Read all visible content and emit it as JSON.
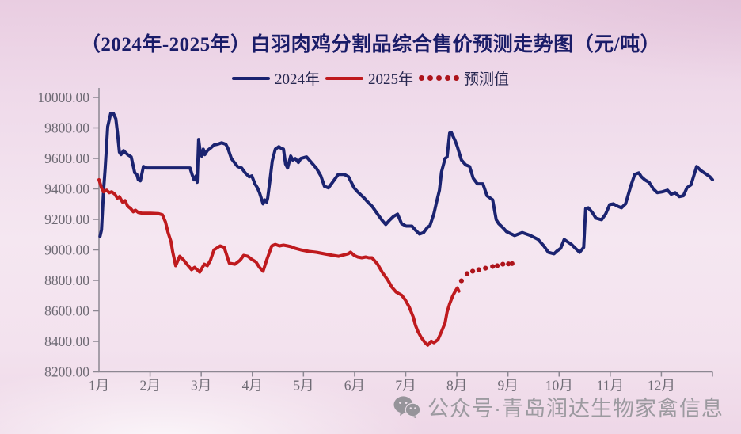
{
  "title": "（2024年-2025年）白羽肉鸡分割品综合售价预测走势图（元/吨）",
  "legend": {
    "items": [
      {
        "label": "2024年",
        "swatch": "solid-line",
        "color": "#1b2370"
      },
      {
        "label": "2025年",
        "swatch": "solid-line",
        "color": "#bf1a1e"
      },
      {
        "label": "预测值",
        "swatch": "dotted-line",
        "color": "#ad141b"
      }
    ]
  },
  "watermark": {
    "icon": "wechat-icon",
    "text": "公众号·青岛润达生物家禽信息"
  },
  "colors": {
    "series_2024": "#1b2370",
    "series_2025": "#bf1a1e",
    "forecast_dots": "#ad141b",
    "title_text": "#1a1c68",
    "legend_text": "#26264f",
    "axis_line": "#8c8792",
    "tick_label": "#6e6a74",
    "watermark_text": "#95959a"
  },
  "chart_data": {
    "type": "line",
    "title": "（2024年-2025年）白羽肉鸡分割品综合售价预测走势图（元/吨）",
    "unit": "元/吨",
    "grid": false,
    "legend_position": "top-center",
    "x_axis": {
      "tick_labels": [
        "1月",
        "2月",
        "3月",
        "4月",
        "5月",
        "6月",
        "7月",
        "8月",
        "9月",
        "10月",
        "11月",
        "12月"
      ],
      "range_months": [
        1,
        13
      ]
    },
    "y_axis": {
      "min": 8200,
      "max": 10000,
      "step": 200,
      "tick_labels": [
        "10000.00",
        "9800.00",
        "9600.00",
        "9400.00",
        "9200.00",
        "9000.00",
        "8800.00",
        "8600.00",
        "8400.00",
        "8200.00"
      ]
    },
    "series": [
      {
        "name": "2024年",
        "style": "solid",
        "color": "#1b2370",
        "points": [
          [
            1.02,
            9089
          ],
          [
            1.05,
            9131
          ],
          [
            1.09,
            9391
          ],
          [
            1.12,
            9532
          ],
          [
            1.17,
            9808
          ],
          [
            1.23,
            9896
          ],
          [
            1.28,
            9896
          ],
          [
            1.33,
            9859
          ],
          [
            1.36,
            9771
          ],
          [
            1.4,
            9641
          ],
          [
            1.43,
            9625
          ],
          [
            1.48,
            9651
          ],
          [
            1.51,
            9641
          ],
          [
            1.56,
            9625
          ],
          [
            1.63,
            9610
          ],
          [
            1.7,
            9505
          ],
          [
            1.74,
            9495
          ],
          [
            1.77,
            9459
          ],
          [
            1.81,
            9453
          ],
          [
            1.87,
            9547
          ],
          [
            1.93,
            9537
          ],
          [
            2.16,
            9537
          ],
          [
            2.47,
            9537
          ],
          [
            2.78,
            9537
          ],
          [
            2.83,
            9485
          ],
          [
            2.86,
            9459
          ],
          [
            2.9,
            9485
          ],
          [
            2.92,
            9443
          ],
          [
            2.95,
            9724
          ],
          [
            2.98,
            9641
          ],
          [
            3.01,
            9615
          ],
          [
            3.04,
            9661
          ],
          [
            3.07,
            9625
          ],
          [
            3.12,
            9651
          ],
          [
            3.18,
            9667
          ],
          [
            3.25,
            9688
          ],
          [
            3.32,
            9693
          ],
          [
            3.4,
            9703
          ],
          [
            3.48,
            9693
          ],
          [
            3.52,
            9667
          ],
          [
            3.59,
            9599
          ],
          [
            3.65,
            9573
          ],
          [
            3.71,
            9547
          ],
          [
            3.79,
            9537
          ],
          [
            3.86,
            9505
          ],
          [
            3.94,
            9479
          ],
          [
            3.99,
            9485
          ],
          [
            4.05,
            9433
          ],
          [
            4.1,
            9407
          ],
          [
            4.14,
            9375
          ],
          [
            4.21,
            9302
          ],
          [
            4.24,
            9328
          ],
          [
            4.28,
            9313
          ],
          [
            4.3,
            9339
          ],
          [
            4.34,
            9443
          ],
          [
            4.39,
            9583
          ],
          [
            4.45,
            9661
          ],
          [
            4.52,
            9677
          ],
          [
            4.56,
            9667
          ],
          [
            4.61,
            9661
          ],
          [
            4.65,
            9563
          ],
          [
            4.69,
            9537
          ],
          [
            4.75,
            9615
          ],
          [
            4.79,
            9589
          ],
          [
            4.84,
            9599
          ],
          [
            4.9,
            9573
          ],
          [
            4.95,
            9600
          ],
          [
            5.06,
            9610
          ],
          [
            5.18,
            9563
          ],
          [
            5.26,
            9532
          ],
          [
            5.34,
            9485
          ],
          [
            5.41,
            9417
          ],
          [
            5.49,
            9407
          ],
          [
            5.57,
            9443
          ],
          [
            5.68,
            9495
          ],
          [
            5.8,
            9495
          ],
          [
            5.88,
            9480
          ],
          [
            5.99,
            9407
          ],
          [
            6.06,
            9381
          ],
          [
            6.19,
            9339
          ],
          [
            6.26,
            9313
          ],
          [
            6.34,
            9287
          ],
          [
            6.45,
            9235
          ],
          [
            6.54,
            9193
          ],
          [
            6.61,
            9167
          ],
          [
            6.68,
            9193
          ],
          [
            6.76,
            9219
          ],
          [
            6.84,
            9235
          ],
          [
            6.92,
            9172
          ],
          [
            7.01,
            9156
          ],
          [
            7.12,
            9156
          ],
          [
            7.19,
            9130
          ],
          [
            7.27,
            9104
          ],
          [
            7.35,
            9114
          ],
          [
            7.43,
            9150
          ],
          [
            7.47,
            9156
          ],
          [
            7.55,
            9235
          ],
          [
            7.61,
            9323
          ],
          [
            7.66,
            9391
          ],
          [
            7.7,
            9511
          ],
          [
            7.77,
            9599
          ],
          [
            7.81,
            9610
          ],
          [
            7.86,
            9766
          ],
          [
            7.89,
            9771
          ],
          [
            7.97,
            9714
          ],
          [
            8.01,
            9677
          ],
          [
            8.09,
            9589
          ],
          [
            8.17,
            9558
          ],
          [
            8.25,
            9547
          ],
          [
            8.32,
            9469
          ],
          [
            8.4,
            9433
          ],
          [
            8.51,
            9433
          ],
          [
            8.59,
            9355
          ],
          [
            8.7,
            9329
          ],
          [
            8.77,
            9198
          ],
          [
            8.82,
            9172
          ],
          [
            8.9,
            9146
          ],
          [
            8.97,
            9120
          ],
          [
            9.13,
            9094
          ],
          [
            9.28,
            9114
          ],
          [
            9.44,
            9094
          ],
          [
            9.59,
            9068
          ],
          [
            9.7,
            9026
          ],
          [
            9.79,
            8984
          ],
          [
            9.9,
            8974
          ],
          [
            9.95,
            8990
          ],
          [
            10.03,
            9010
          ],
          [
            10.1,
            9068
          ],
          [
            10.17,
            9052
          ],
          [
            10.24,
            9036
          ],
          [
            10.32,
            9010
          ],
          [
            10.4,
            8984
          ],
          [
            10.48,
            9016
          ],
          [
            10.52,
            9271
          ],
          [
            10.57,
            9276
          ],
          [
            10.65,
            9245
          ],
          [
            10.72,
            9208
          ],
          [
            10.83,
            9198
          ],
          [
            10.91,
            9235
          ],
          [
            10.99,
            9297
          ],
          [
            11.06,
            9302
          ],
          [
            11.14,
            9287
          ],
          [
            11.22,
            9276
          ],
          [
            11.3,
            9302
          ],
          [
            11.4,
            9417
          ],
          [
            11.48,
            9495
          ],
          [
            11.56,
            9505
          ],
          [
            11.61,
            9479
          ],
          [
            11.68,
            9458
          ],
          [
            11.76,
            9443
          ],
          [
            11.84,
            9401
          ],
          [
            11.92,
            9375
          ],
          [
            12.02,
            9381
          ],
          [
            12.12,
            9391
          ],
          [
            12.19,
            9365
          ],
          [
            12.27,
            9375
          ],
          [
            12.35,
            9349
          ],
          [
            12.43,
            9355
          ],
          [
            12.5,
            9407
          ],
          [
            12.58,
            9427
          ],
          [
            12.69,
            9547
          ],
          [
            12.77,
            9521
          ],
          [
            12.84,
            9505
          ],
          [
            12.95,
            9479
          ],
          [
            13.0,
            9460
          ]
        ]
      },
      {
        "name": "2025年",
        "style": "solid",
        "color": "#bf1a1e",
        "points": [
          [
            1.0,
            9460
          ],
          [
            1.05,
            9407
          ],
          [
            1.09,
            9381
          ],
          [
            1.15,
            9391
          ],
          [
            1.2,
            9375
          ],
          [
            1.25,
            9381
          ],
          [
            1.31,
            9365
          ],
          [
            1.36,
            9339
          ],
          [
            1.4,
            9349
          ],
          [
            1.46,
            9313
          ],
          [
            1.51,
            9323
          ],
          [
            1.56,
            9287
          ],
          [
            1.62,
            9271
          ],
          [
            1.67,
            9250
          ],
          [
            1.71,
            9260
          ],
          [
            1.77,
            9245
          ],
          [
            1.85,
            9240
          ],
          [
            2.01,
            9240
          ],
          [
            2.16,
            9238
          ],
          [
            2.24,
            9230
          ],
          [
            2.3,
            9183
          ],
          [
            2.35,
            9115
          ],
          [
            2.41,
            9052
          ],
          [
            2.44,
            8990
          ],
          [
            2.5,
            8896
          ],
          [
            2.58,
            8958
          ],
          [
            2.66,
            8932
          ],
          [
            2.72,
            8906
          ],
          [
            2.81,
            8870
          ],
          [
            2.87,
            8885
          ],
          [
            2.97,
            8854
          ],
          [
            3.06,
            8906
          ],
          [
            3.12,
            8896
          ],
          [
            3.18,
            8932
          ],
          [
            3.25,
            9000
          ],
          [
            3.37,
            9026
          ],
          [
            3.45,
            9016
          ],
          [
            3.55,
            8912
          ],
          [
            3.66,
            8906
          ],
          [
            3.76,
            8932
          ],
          [
            3.83,
            8964
          ],
          [
            3.91,
            8958
          ],
          [
            3.99,
            8937
          ],
          [
            4.07,
            8921
          ],
          [
            4.14,
            8885
          ],
          [
            4.21,
            8860
          ],
          [
            4.28,
            8932
          ],
          [
            4.38,
            9026
          ],
          [
            4.45,
            9036
          ],
          [
            4.53,
            9026
          ],
          [
            4.61,
            9031
          ],
          [
            4.69,
            9026
          ],
          [
            4.76,
            9021
          ],
          [
            4.84,
            9010
          ],
          [
            4.95,
            9000
          ],
          [
            5.1,
            8990
          ],
          [
            5.26,
            8984
          ],
          [
            5.41,
            8974
          ],
          [
            5.57,
            8964
          ],
          [
            5.69,
            8958
          ],
          [
            5.8,
            8968
          ],
          [
            5.88,
            8975
          ],
          [
            5.92,
            8985
          ],
          [
            5.99,
            8964
          ],
          [
            6.06,
            8953
          ],
          [
            6.14,
            8948
          ],
          [
            6.22,
            8953
          ],
          [
            6.28,
            8948
          ],
          [
            6.34,
            8948
          ],
          [
            6.45,
            8906
          ],
          [
            6.54,
            8854
          ],
          [
            6.65,
            8802
          ],
          [
            6.73,
            8755
          ],
          [
            6.81,
            8724
          ],
          [
            6.92,
            8703
          ],
          [
            6.99,
            8672
          ],
          [
            7.07,
            8625
          ],
          [
            7.15,
            8557
          ],
          [
            7.19,
            8505
          ],
          [
            7.24,
            8464
          ],
          [
            7.3,
            8427
          ],
          [
            7.38,
            8391
          ],
          [
            7.43,
            8375
          ],
          [
            7.5,
            8401
          ],
          [
            7.55,
            8391
          ],
          [
            7.63,
            8411
          ],
          [
            7.7,
            8464
          ],
          [
            7.77,
            8521
          ],
          [
            7.81,
            8594
          ],
          [
            7.86,
            8646
          ],
          [
            7.92,
            8698
          ],
          [
            7.97,
            8729
          ],
          [
            8.01,
            8750
          ],
          [
            8.04,
            8729
          ]
        ]
      },
      {
        "name": "预测值",
        "style": "dotted",
        "color": "#ad141b",
        "points": [
          [
            8.09,
            8797
          ],
          [
            8.2,
            8844
          ],
          [
            8.31,
            8860
          ],
          [
            8.43,
            8870
          ],
          [
            8.56,
            8880
          ],
          [
            8.7,
            8891
          ],
          [
            8.79,
            8896
          ],
          [
            8.9,
            8906
          ],
          [
            9.01,
            8908
          ],
          [
            9.08,
            8910
          ]
        ]
      }
    ]
  }
}
